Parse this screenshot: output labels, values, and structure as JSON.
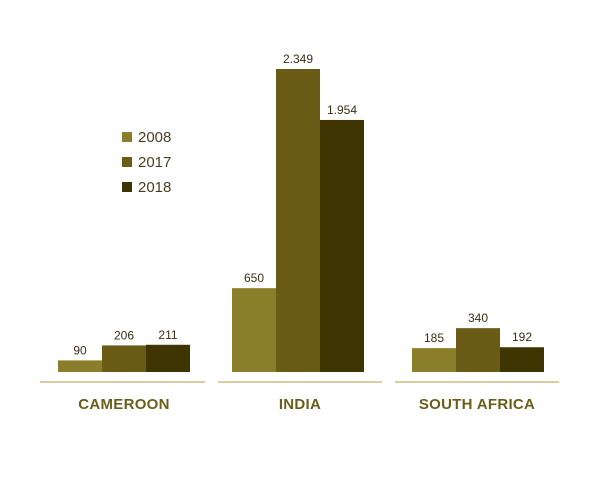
{
  "chart_data": {
    "type": "bar",
    "categories": [
      "CAMEROON",
      "INDIA",
      "SOUTH AFRICA"
    ],
    "series": [
      {
        "name": "2008",
        "values": [
          90,
          650,
          185
        ],
        "labels": [
          "90",
          "650",
          "185"
        ],
        "color": "#8a7e2a"
      },
      {
        "name": "2017",
        "values": [
          206,
          2349,
          340
        ],
        "labels": [
          "206",
          "2.349",
          "340"
        ],
        "color": "#6a5c16"
      },
      {
        "name": "2018",
        "values": [
          211,
          1954,
          192
        ],
        "labels": [
          "211",
          "1.954",
          "192"
        ],
        "color": "#3f3502"
      }
    ],
    "title": "",
    "xlabel": "",
    "ylabel": "",
    "ylim": [
      0,
      2349
    ],
    "grid": false,
    "legend_position": "upper-left",
    "axis_line_color": "#b89a4a",
    "category_label_color": "#6a5e1a"
  }
}
